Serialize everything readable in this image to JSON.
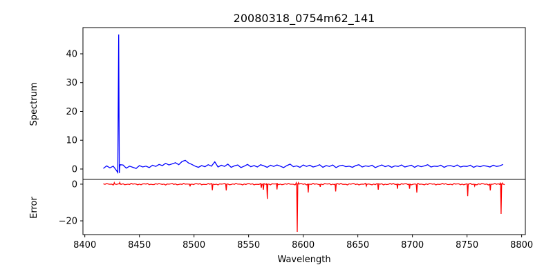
{
  "chart_data": [
    {
      "type": "line",
      "title": "20080318_0754m62_141",
      "ylabel": "Spectrum",
      "xlabel": "",
      "color": "#0000ff",
      "xlim": [
        8398.3,
        8803.4
      ],
      "ylim": [
        -3.6,
        49.1
      ],
      "yticks": [
        0,
        10,
        20,
        30,
        40
      ],
      "x_start": 8417,
      "x_step": 3,
      "values": [
        0.2,
        1.1,
        0.4,
        1.0,
        -0.5,
        0.8,
        1.4,
        0.3,
        1.0,
        0.6,
        0.2,
        1.2,
        0.7,
        1.0,
        0.5,
        1.3,
        0.9,
        1.6,
        1.2,
        2.0,
        1.4,
        1.8,
        2.2,
        1.5,
        2.6,
        3.0,
        2.1,
        1.6,
        1.0,
        0.6,
        1.2,
        0.8,
        1.5,
        1.0,
        2.5,
        0.7,
        1.3,
        0.9,
        1.7,
        0.6,
        1.1,
        1.4,
        0.5,
        1.0,
        1.6,
        0.8,
        1.2,
        0.7,
        1.5,
        1.1,
        0.6,
        1.3,
        0.9,
        1.4,
        1.0,
        0.5,
        1.2,
        1.7,
        0.8,
        1.1,
        0.6,
        1.4,
        0.9,
        1.3,
        0.7,
        1.0,
        1.5,
        0.6,
        1.2,
        0.9,
        1.4,
        0.5,
        1.1,
        1.3,
        0.8,
        1.0,
        0.6,
        1.2,
        1.5,
        0.7,
        1.1,
        0.9,
        1.3,
        0.5,
        1.0,
        1.4,
        0.8,
        1.2,
        0.6,
        1.1,
        0.9,
        1.4,
        0.7,
        1.0,
        1.3,
        0.6,
        1.2,
        0.8,
        1.1,
        1.5,
        0.7,
        1.0,
        0.9,
        1.3,
        0.6,
        1.1,
        1.2,
        0.8,
        1.4,
        0.7,
        1.0,
        0.9,
        1.3,
        0.6,
        1.1,
        0.8,
        1.2,
        1.0,
        0.7,
        1.3,
        0.9,
        1.1,
        1.6
      ],
      "spikes": [
        [
          8430.2,
          -1.2
        ],
        [
          8431.0,
          46.7
        ],
        [
          8431.6,
          -1.4
        ],
        [
          8432.4,
          1.5
        ]
      ]
    },
    {
      "type": "line",
      "ylabel": "Error",
      "xlabel": "Wavelength",
      "color": "#ff0000",
      "xlim": [
        8398.3,
        8803.4
      ],
      "ylim": [
        -27.5,
        2.6
      ],
      "yticks": [
        0,
        -20
      ],
      "xticks": [
        8400,
        8450,
        8500,
        8550,
        8600,
        8650,
        8700,
        8750,
        8800
      ],
      "x_start": 8417,
      "x_end": 8785,
      "baseline": 0,
      "dips": [
        [
          8427,
          0.8
        ],
        [
          8432,
          0.9
        ],
        [
          8496.4,
          -1.2
        ],
        [
          8516.8,
          -3.3
        ],
        [
          8529.5,
          -3.4
        ],
        [
          8561.6,
          -2.0
        ],
        [
          8563.5,
          -3.0
        ],
        [
          8567.1,
          -8.0
        ],
        [
          8576,
          -2.9
        ],
        [
          8593.6,
          0.8
        ],
        [
          8594.5,
          -26.0
        ],
        [
          8595.6,
          0.8
        ],
        [
          8604.6,
          -4.5
        ],
        [
          8615.6,
          -1.5
        ],
        [
          8629.7,
          -4.0
        ],
        [
          8657.8,
          -1.0
        ],
        [
          8668.7,
          -3.0
        ],
        [
          8686.3,
          -2.5
        ],
        [
          8697.4,
          -2.5
        ],
        [
          8704,
          -4.6
        ],
        [
          8750.6,
          -6.5
        ],
        [
          8757,
          -1.0
        ],
        [
          8771.3,
          -3.4
        ],
        [
          8780.4,
          0.6
        ],
        [
          8781.2,
          -16.2
        ],
        [
          8782.2,
          0.6
        ]
      ]
    }
  ]
}
